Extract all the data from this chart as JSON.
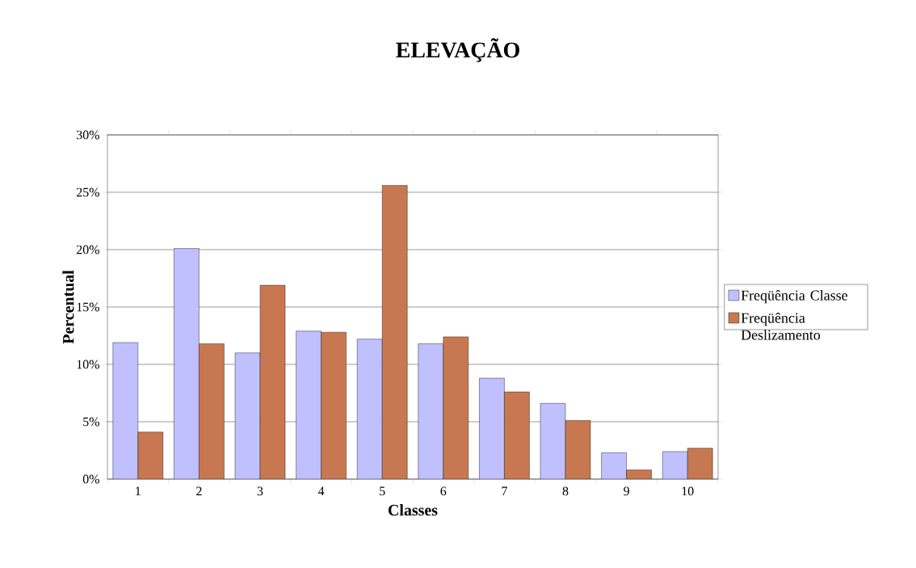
{
  "chart_data": {
    "type": "bar",
    "title": "ELEVAÇÃO",
    "xlabel": "Classes",
    "ylabel": "Percentual",
    "categories": [
      "1",
      "2",
      "3",
      "4",
      "5",
      "6",
      "7",
      "8",
      "9",
      "10"
    ],
    "series": [
      {
        "name": "Freqüência Classe",
        "color": "#c0c0ff",
        "values": [
          11.9,
          20.1,
          11.0,
          12.9,
          12.2,
          11.8,
          8.8,
          6.6,
          2.3,
          2.4
        ]
      },
      {
        "name": "Freqüência Deslizamento",
        "color": "#c87850",
        "values": [
          4.1,
          11.8,
          16.9,
          12.8,
          25.6,
          12.4,
          7.6,
          5.1,
          0.8,
          2.7
        ]
      }
    ],
    "ylim": [
      0,
      30
    ],
    "yticks": [
      {
        "value": 0,
        "label": "0%"
      },
      {
        "value": 5,
        "label": "5%"
      },
      {
        "value": 10,
        "label": "10%"
      },
      {
        "value": 15,
        "label": "15%"
      },
      {
        "value": 20,
        "label": "20%"
      },
      {
        "value": 25,
        "label": "25%"
      },
      {
        "value": 30,
        "label": "30%"
      }
    ],
    "grid": "y",
    "legend": "right"
  }
}
